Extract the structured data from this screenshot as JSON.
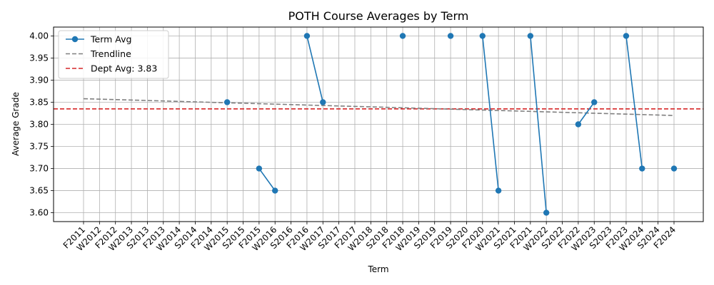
{
  "chart_data": {
    "type": "line",
    "title": "POTH Course Averages by Term",
    "xlabel": "Term",
    "ylabel": "Average Grade",
    "categories": [
      "F2011",
      "W2012",
      "F2012",
      "W2013",
      "S2013",
      "F2013",
      "W2014",
      "S2014",
      "F2014",
      "W2015",
      "S2015",
      "F2015",
      "W2016",
      "S2016",
      "F2016",
      "W2017",
      "S2017",
      "F2017",
      "W2018",
      "S2018",
      "F2018",
      "W2019",
      "S2019",
      "F2019",
      "S2020",
      "F2020",
      "W2021",
      "S2021",
      "F2021",
      "W2022",
      "S2022",
      "F2022",
      "W2023",
      "S2023",
      "F2023",
      "W2024",
      "S2024",
      "F2024"
    ],
    "ylim": [
      3.58,
      4.02
    ],
    "yticks": [
      3.6,
      3.65,
      3.7,
      3.75,
      3.8,
      3.85,
      3.9,
      3.95,
      4.0
    ],
    "grid": true,
    "legend_position": "top-left",
    "series": [
      {
        "name": "Term Avg",
        "color": "#1f77b4",
        "values": [
          null,
          null,
          null,
          null,
          null,
          null,
          null,
          null,
          null,
          3.85,
          null,
          3.7,
          3.65,
          null,
          4.0,
          3.85,
          null,
          null,
          null,
          null,
          4.0,
          null,
          null,
          4.0,
          null,
          4.0,
          3.65,
          null,
          4.0,
          3.6,
          null,
          3.8,
          3.85,
          null,
          4.0,
          3.7,
          null,
          3.7
        ]
      }
    ],
    "trendline": {
      "name": "Trendline",
      "color": "#808080",
      "start": 3.858,
      "end": 3.82
    },
    "reference_line": {
      "name": "Dept Avg: 3.83",
      "color": "#d62728",
      "value": 3.835
    }
  }
}
